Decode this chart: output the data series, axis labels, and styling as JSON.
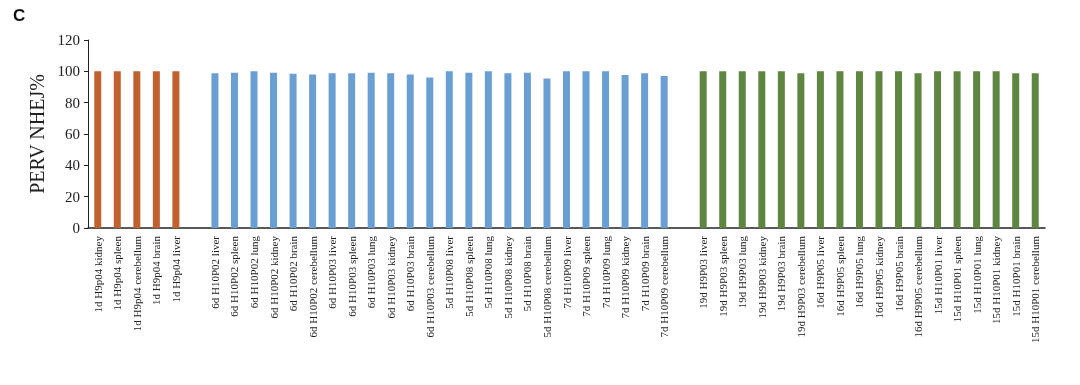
{
  "chart_data": {
    "type": "bar",
    "title": "C",
    "ylabel": "PERV NHEJ%",
    "categories": [
      "1d H9p04 kidney",
      "1d H9p04 spleen",
      "1d H9p04 cerebellum",
      "1d H9p04 brain",
      "1d H9p04 liver",
      null,
      "6d H10P02 liver",
      "6d H10P02 spleen",
      "6d H10P02 lung",
      "6d H10P02 kidney",
      "6d H10P02 brain",
      "6d H10P02 cerebellum",
      "6d H10P03 liver",
      "6d H10P03 spleen",
      "6d H10P03 lung",
      "6d H10P03 kidney",
      "6d H10P03 brain",
      "6d H10P03 cerebellum",
      "5d H10P08 liver",
      "5d H10P08 spleen",
      "5d H10P08 lung",
      "5d H10P08 kidney",
      "5d H10P08 brain",
      "5d H10P08 cerebellum",
      "7d H10P09 liver",
      "7d H10P09 spleen",
      "7d H10P09 lung",
      "7d H10P09 kidney",
      "7d H10P09 brain",
      "7d H10P09 cerebellum",
      null,
      "19d H9P03 liver",
      "19d H9P03 spleen",
      "19d H9P03 lung",
      "19d H9P03 kidney",
      "19d H9P03 brain",
      "19d H9P03 cerebellum",
      "16d H9P05 liver",
      "16d H9P05 spleen",
      "16d H9P05 lung",
      "16d H9P05 kidney",
      "16d H9P05 brain",
      "16d H9P05 cerebellum",
      "15d H10P01 liver",
      "15d H10P01 spleen",
      "15d H10P01 lung",
      "15d H10P01 kidney",
      "15d H10P01 brain",
      "15d H10P01 cerebellum"
    ],
    "values": [
      100,
      100,
      100,
      100,
      100,
      null,
      98.7,
      99.1,
      100,
      99.1,
      98.5,
      98,
      98.7,
      98.7,
      99.1,
      98.7,
      98,
      96,
      100,
      99.1,
      100,
      98.7,
      99.1,
      95.4,
      100,
      100,
      100,
      97.6,
      98.7,
      97,
      null,
      100,
      100,
      100,
      100,
      100,
      98.7,
      100,
      100,
      100,
      100,
      100,
      98.8,
      100,
      100,
      100,
      100,
      98.8,
      98.8
    ],
    "colors": [
      "#c0622f",
      "#c0622f",
      "#c0622f",
      "#c0622f",
      "#c0622f",
      null,
      "#6a9fd4",
      "#6a9fd4",
      "#6a9fd4",
      "#6a9fd4",
      "#6a9fd4",
      "#6a9fd4",
      "#6a9fd4",
      "#6a9fd4",
      "#6a9fd4",
      "#6a9fd4",
      "#6a9fd4",
      "#6a9fd4",
      "#6a9fd4",
      "#6a9fd4",
      "#6a9fd4",
      "#6a9fd4",
      "#6a9fd4",
      "#6a9fd4",
      "#6a9fd4",
      "#6a9fd4",
      "#6a9fd4",
      "#6a9fd4",
      "#6a9fd4",
      "#6a9fd4",
      null,
      "#5f8640",
      "#5f8640",
      "#5f8640",
      "#5f8640",
      "#5f8640",
      "#5f8640",
      "#5f8640",
      "#5f8640",
      "#5f8640",
      "#5f8640",
      "#5f8640",
      "#5f8640",
      "#5f8640",
      "#5f8640",
      "#5f8640",
      "#5f8640",
      "#5f8640",
      "#5f8640"
    ],
    "ylim": [
      0,
      120
    ],
    "yticks": [
      0,
      20,
      40,
      60,
      80,
      100,
      120
    ]
  }
}
